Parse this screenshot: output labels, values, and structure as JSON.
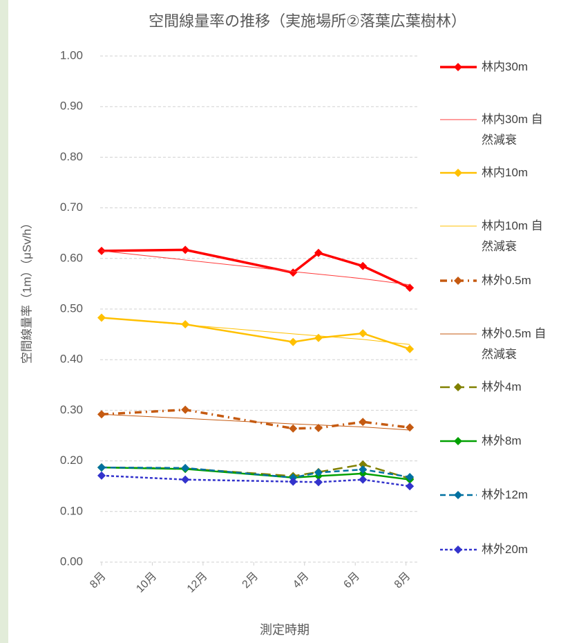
{
  "chart_data": {
    "type": "line",
    "title": "空間線量率の推移（実施場所②落葉広葉樹林）",
    "x_label": "測定時期",
    "y_label": "空間線量率（1m）（μSv/h）",
    "x": [
      0,
      3.3,
      7.55,
      8.55,
      10.3,
      12.15
    ],
    "xlim": [
      0,
      12.5
    ],
    "xticks": [
      {
        "value": 0,
        "label": "8月"
      },
      {
        "value": 2,
        "label": "10月"
      },
      {
        "value": 4,
        "label": "12月"
      },
      {
        "value": 6,
        "label": "2月"
      },
      {
        "value": 8,
        "label": "4月"
      },
      {
        "value": 10,
        "label": "6月"
      },
      {
        "value": 12,
        "label": "8月"
      }
    ],
    "ylim": [
      0,
      1
    ],
    "yticks": [
      {
        "value": 0,
        "label": "0.00"
      },
      {
        "value": 0.1,
        "label": "0.10"
      },
      {
        "value": 0.2,
        "label": "0.20"
      },
      {
        "value": 0.3,
        "label": "0.30"
      },
      {
        "value": 0.4,
        "label": "0.40"
      },
      {
        "value": 0.5,
        "label": "0.50"
      },
      {
        "value": 0.6,
        "label": "0.60"
      },
      {
        "value": 0.7,
        "label": "0.70"
      },
      {
        "value": 0.8,
        "label": "0.80"
      },
      {
        "value": 0.9,
        "label": "0.90"
      },
      {
        "value": 1,
        "label": "1.00"
      }
    ],
    "grid": true,
    "legend": "right",
    "series": [
      {
        "name": "林内30m",
        "color": "#ff0000",
        "style": "solid",
        "width": 3.5,
        "marker": true,
        "values": [
          0.615,
          0.617,
          0.572,
          0.611,
          0.585,
          0.542
        ]
      },
      {
        "name": "林内30m 自然減衰",
        "color": "#ff3b3b",
        "style": "solid",
        "width": 1,
        "marker": false,
        "values": [
          0.615,
          0.597,
          0.574,
          0.569,
          0.56,
          0.548
        ]
      },
      {
        "name": "林内10m",
        "color": "#ffc000",
        "style": "solid",
        "width": 2.5,
        "marker": true,
        "values": [
          0.483,
          0.47,
          0.435,
          0.443,
          0.452,
          0.421
        ]
      },
      {
        "name": "林内10m 自然減衰",
        "color": "#ffc000",
        "style": "solid",
        "width": 1,
        "marker": false,
        "values": [
          0.483,
          0.469,
          0.451,
          0.447,
          0.44,
          0.43
        ]
      },
      {
        "name": "林外0.5m",
        "color": "#c55a11",
        "style": "dashdot",
        "width": 3.5,
        "marker": true,
        "values": [
          0.292,
          0.301,
          0.264,
          0.265,
          0.277,
          0.266
        ]
      },
      {
        "name": "林外0.5m 自然減衰",
        "color": "#c55a11",
        "style": "solid",
        "width": 1,
        "marker": false,
        "values": [
          0.292,
          0.284,
          0.273,
          0.271,
          0.267,
          0.261
        ]
      },
      {
        "name": "林外4m",
        "color": "#808000",
        "style": "longdash",
        "width": 2.5,
        "marker": true,
        "values": [
          0.187,
          0.185,
          0.17,
          0.178,
          0.193,
          0.165
        ]
      },
      {
        "name": "林外8m",
        "color": "#00a000",
        "style": "solid",
        "width": 2.5,
        "marker": true,
        "values": [
          0.187,
          0.184,
          0.167,
          0.17,
          0.175,
          0.163
        ]
      },
      {
        "name": "林外12m",
        "color": "#0070a0",
        "style": "dash",
        "width": 2.5,
        "marker": true,
        "values": [
          0.187,
          0.186,
          0.167,
          0.177,
          0.183,
          0.168
        ]
      },
      {
        "name": "林外20m",
        "color": "#3333cc",
        "style": "shortdash",
        "width": 2.5,
        "marker": true,
        "values": [
          0.171,
          0.163,
          0.159,
          0.158,
          0.163,
          0.15
        ]
      }
    ]
  }
}
